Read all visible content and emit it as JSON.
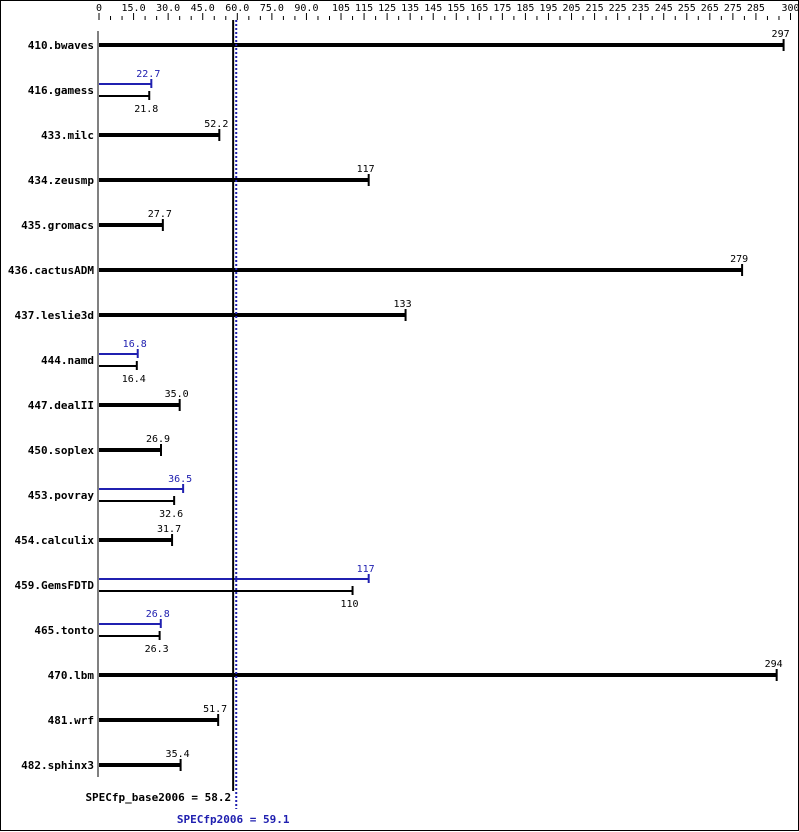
{
  "chart_data": {
    "type": "bar",
    "orientation": "horizontal",
    "title": "",
    "xlim": [
      0,
      300
    ],
    "x_ticks": [
      "0",
      "15.0",
      "30.0",
      "45.0",
      "60.0",
      "75.0",
      "90.0",
      "105",
      "115",
      "125",
      "135",
      "145",
      "155",
      "165",
      "175",
      "185",
      "195",
      "205",
      "215",
      "225",
      "235",
      "245",
      "255",
      "265",
      "275",
      "285",
      "300"
    ],
    "x_tick_values": [
      0,
      15,
      30,
      45,
      60,
      75,
      90,
      105,
      115,
      125,
      135,
      145,
      155,
      165,
      175,
      185,
      195,
      205,
      215,
      225,
      235,
      245,
      255,
      265,
      275,
      285,
      300
    ],
    "categories": [
      "410.bwaves",
      "416.gamess",
      "433.milc",
      "434.zeusmp",
      "435.gromacs",
      "436.cactusADM",
      "437.leslie3d",
      "444.namd",
      "447.dealII",
      "450.soplex",
      "453.povray",
      "454.calculix",
      "459.GemsFDTD",
      "465.tonto",
      "470.lbm",
      "481.wrf",
      "482.sphinx3"
    ],
    "series": [
      {
        "name": "SPECfp_base2006",
        "color": "#000000",
        "values": [
          297,
          21.8,
          52.2,
          117,
          27.7,
          279,
          133,
          16.4,
          35.0,
          26.9,
          32.6,
          31.7,
          110,
          26.3,
          294,
          51.7,
          35.4
        ],
        "labels": [
          "297",
          "21.8",
          "52.2",
          "117",
          "27.7",
          "279",
          "133",
          "16.4",
          "35.0",
          "26.9",
          "32.6",
          "31.7",
          "110",
          "26.3",
          "294",
          "51.7",
          "35.4"
        ]
      },
      {
        "name": "SPECfp2006",
        "color": "#2020b0",
        "values": [
          null,
          22.7,
          null,
          null,
          null,
          null,
          null,
          16.8,
          null,
          null,
          36.5,
          null,
          117,
          26.8,
          null,
          null,
          null
        ],
        "labels": [
          null,
          "22.7",
          null,
          null,
          null,
          null,
          null,
          "16.8",
          null,
          null,
          "36.5",
          null,
          "117",
          "26.8",
          null,
          null,
          null
        ]
      }
    ],
    "reference_lines": [
      {
        "label": "SPECfp_base2006 = 58.2",
        "value": 58.2,
        "color": "#000000"
      },
      {
        "label": "SPECfp2006 = 59.1",
        "value": 59.1,
        "color": "#2020b0"
      }
    ],
    "grid": false,
    "legend": "none"
  }
}
